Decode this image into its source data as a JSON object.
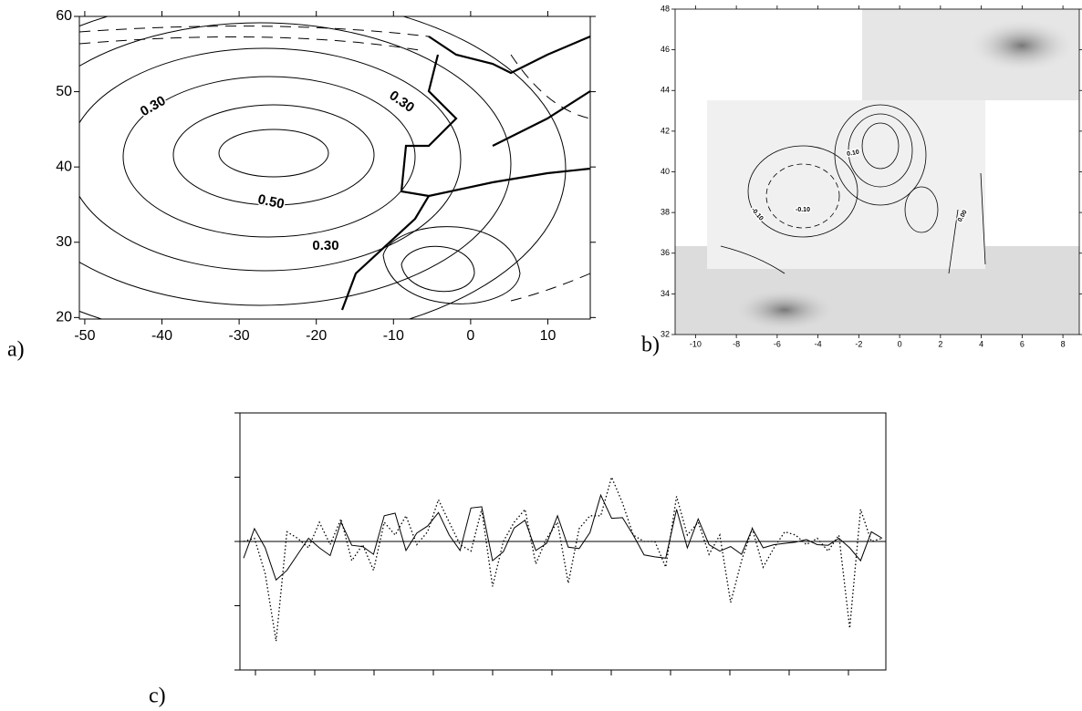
{
  "chart_data": [
    {
      "type": "contour",
      "panel_label": "a)",
      "xlim": [
        -50.7,
        15.5
      ],
      "ylim": [
        19.8,
        60
      ],
      "xticks": [
        -50,
        -40,
        -30,
        -20,
        -10,
        0,
        10
      ],
      "yticks": [
        20,
        30,
        40,
        50,
        60
      ],
      "contour_labels": [
        "0.30",
        "0.30",
        "0.50",
        "0.30"
      ]
    },
    {
      "type": "contour",
      "panel_label": "b)",
      "xlim": [
        -11,
        8.8
      ],
      "ylim": [
        32,
        48
      ],
      "xticks": [
        -10,
        -8,
        -6,
        -4,
        -2,
        0,
        2,
        4,
        6,
        8
      ],
      "yticks": [
        32,
        34,
        36,
        38,
        40,
        42,
        44,
        46,
        48
      ],
      "contour_labels": [
        "-0.10",
        "0.10",
        "0.00",
        "-0.10"
      ]
    },
    {
      "type": "line",
      "panel_label": "c)",
      "ylim": [
        -2,
        2
      ],
      "series": [
        {
          "color": "#000000",
          "style": "solid",
          "values": [
            -0.26,
            0.2,
            -0.1,
            -0.6,
            -0.45,
            -0.2,
            0.05,
            -0.1,
            -0.22,
            0.3,
            -0.06,
            -0.08,
            -0.2,
            0.4,
            0.44,
            -0.14,
            0.13,
            0.24,
            0.45,
            0.1,
            -0.14,
            0.52,
            0.54,
            -0.3,
            -0.16,
            0.21,
            0.33,
            -0.14,
            -0.03,
            0.4,
            -0.09,
            -0.11,
            0.14,
            0.72,
            0.36,
            0.37,
            0.1,
            -0.21,
            -0.24,
            -0.26,
            0.5,
            -0.1,
            0.35,
            -0.05,
            -0.15,
            -0.08,
            -0.2,
            0.2,
            -0.1,
            -0.05,
            -0.03,
            -0.01,
            0.03,
            -0.05,
            -0.06,
            0.05,
            -0.1,
            -0.3,
            0.15,
            0.05
          ]
        },
        {
          "color": "#000000",
          "style": "dotted",
          "values": [
            0,
            0.05,
            -0.5,
            -1.55,
            0.15,
            0.05,
            -0.1,
            0.3,
            -0.05,
            0.35,
            -0.3,
            -0.05,
            -0.45,
            0.3,
            0.1,
            0.4,
            -0.05,
            0.15,
            0.65,
            0.3,
            -0.05,
            -0.15,
            0.5,
            -0.7,
            0.0,
            0.3,
            0.5,
            -0.35,
            0.05,
            0.3,
            -0.65,
            0.2,
            0.4,
            0.4,
            1.0,
            0.6,
            0.1,
            0.0,
            0.0,
            -0.4,
            0.7,
            0.1,
            0.3,
            -0.2,
            0.1,
            -0.95,
            -0.3,
            0.2,
            -0.4,
            -0.1,
            0.15,
            0.1,
            -0.05,
            0.05,
            -0.15,
            0.1,
            -1.35,
            0.5,
            0.0,
            0.05
          ]
        }
      ]
    }
  ]
}
